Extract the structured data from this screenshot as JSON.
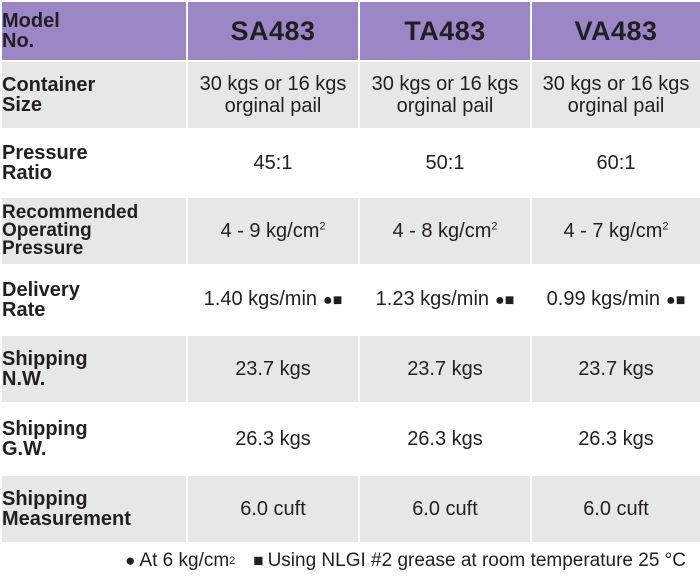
{
  "header": {
    "label": [
      "Model",
      "No."
    ],
    "models": [
      "SA483",
      "TA483",
      "VA483"
    ]
  },
  "rows": [
    {
      "label": [
        "Container",
        "Size"
      ],
      "values": [
        [
          "30 kgs or 16 kgs",
          "orginal pail"
        ],
        [
          "30 kgs or 16 kgs",
          "orginal pail"
        ],
        [
          "30 kgs or 16 kgs",
          "orginal pail"
        ]
      ]
    },
    {
      "label": [
        "Pressure",
        "Ratio"
      ],
      "values": [
        "45:1",
        "50:1",
        "60:1"
      ]
    },
    {
      "label": [
        "Recommended",
        "Operating",
        "Pressure"
      ],
      "values": [
        "4 - 9 kg/cm",
        "4 - 8 kg/cm",
        "4 - 7 kg/cm"
      ],
      "sup": "2"
    },
    {
      "label": [
        "Delivery",
        "Rate"
      ],
      "values": [
        "1.40 kgs/min",
        "1.23 kgs/min",
        "0.99 kgs/min"
      ],
      "marks": "●■"
    },
    {
      "label": [
        "Shipping",
        "N.W."
      ],
      "values": [
        "23.7 kgs",
        "23.7 kgs",
        "23.7 kgs"
      ]
    },
    {
      "label": [
        "Shipping",
        "G.W."
      ],
      "values": [
        "26.3 kgs",
        "26.3 kgs",
        "26.3 kgs"
      ]
    },
    {
      "label": [
        "Shipping",
        "Measurement"
      ],
      "values": [
        "6.0 cuft",
        "6.0 cuft",
        "6.0 cuft"
      ]
    }
  ],
  "footer": {
    "note1_symbol": "●",
    "note1_text": "At 6 kg/cm",
    "note1_sup": "2",
    "note2_symbol": "■",
    "note2_text": "Using NLGI #2 grease at room temperature 25",
    "note2_unit": "°C"
  },
  "colors": {
    "header_bg": "#9b87c6",
    "row_grey": "#e6e7e8",
    "row_white": "#ffffff",
    "text": "#231f20"
  }
}
